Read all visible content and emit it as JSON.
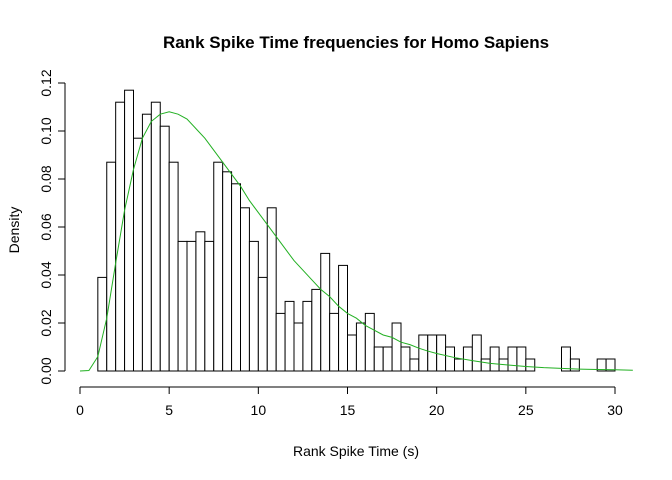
{
  "chart_data": {
    "type": "histogram",
    "title": "Rank Spike Time frequencies for Homo Sapiens",
    "xlabel": "Rank Spike Time (s)",
    "ylabel": "Density",
    "xlim": [
      0,
      31
    ],
    "ylim": [
      0,
      0.12
    ],
    "x_ticks": [
      0,
      5,
      10,
      15,
      20,
      25,
      30
    ],
    "x_tick_labels": [
      "0",
      "5",
      "10",
      "15",
      "20",
      "25",
      "30"
    ],
    "y_ticks": [
      0,
      0.02,
      0.04,
      0.06,
      0.08,
      0.1,
      0.12
    ],
    "y_tick_labels": [
      "0.00",
      "0.02",
      "0.04",
      "0.06",
      "0.08",
      "0.10",
      "0.12"
    ],
    "bin_width": 0.5,
    "bin_start": 1.0,
    "densities": [
      0.039,
      0.087,
      0.112,
      0.117,
      0.097,
      0.107,
      0.112,
      0.102,
      0.087,
      0.054,
      0.054,
      0.058,
      0.054,
      0.087,
      0.083,
      0.078,
      0.068,
      0.054,
      0.039,
      0.068,
      0.024,
      0.029,
      0.02,
      0.029,
      0.034,
      0.049,
      0.024,
      0.044,
      0.015,
      0.02,
      0.024,
      0.01,
      0.01,
      0.02,
      0.01,
      0.005,
      0.015,
      0.015,
      0.015,
      0.01,
      0.005,
      0.01,
      0.015,
      0.005,
      0.01,
      0.005,
      0.01,
      0.01,
      0.005,
      0.0,
      0.0,
      0.0,
      0.01,
      0.005,
      0.0,
      0.0,
      0.005,
      0.005
    ],
    "density_curve": {
      "color": "#22b022",
      "x": [
        0.0,
        0.5,
        1.0,
        1.5,
        2.0,
        2.5,
        3.0,
        3.5,
        4.0,
        4.5,
        5.0,
        5.5,
        6.0,
        6.5,
        7.0,
        7.5,
        8.0,
        8.5,
        9.0,
        9.5,
        10.0,
        10.5,
        11.0,
        11.5,
        12.0,
        12.5,
        13.0,
        13.5,
        14.0,
        14.5,
        15.0,
        15.5,
        16.0,
        16.5,
        17.0,
        17.5,
        18.0,
        18.5,
        19.0,
        19.5,
        20.0,
        21.0,
        22.0,
        23.0,
        24.0,
        25.0,
        26.0,
        27.0,
        28.0,
        29.0,
        30.0,
        31.0
      ],
      "y": [
        0.0,
        0.0002,
        0.006,
        0.022,
        0.045,
        0.067,
        0.084,
        0.097,
        0.104,
        0.107,
        0.108,
        0.107,
        0.105,
        0.101,
        0.097,
        0.092,
        0.087,
        0.082,
        0.077,
        0.071,
        0.066,
        0.061,
        0.056,
        0.051,
        0.046,
        0.042,
        0.038,
        0.034,
        0.031,
        0.027,
        0.024,
        0.022,
        0.019,
        0.017,
        0.015,
        0.014,
        0.012,
        0.011,
        0.0095,
        0.0083,
        0.0073,
        0.0056,
        0.0043,
        0.0032,
        0.0025,
        0.0019,
        0.0014,
        0.0011,
        0.0008,
        0.0006,
        0.0005,
        0.0003
      ]
    }
  }
}
